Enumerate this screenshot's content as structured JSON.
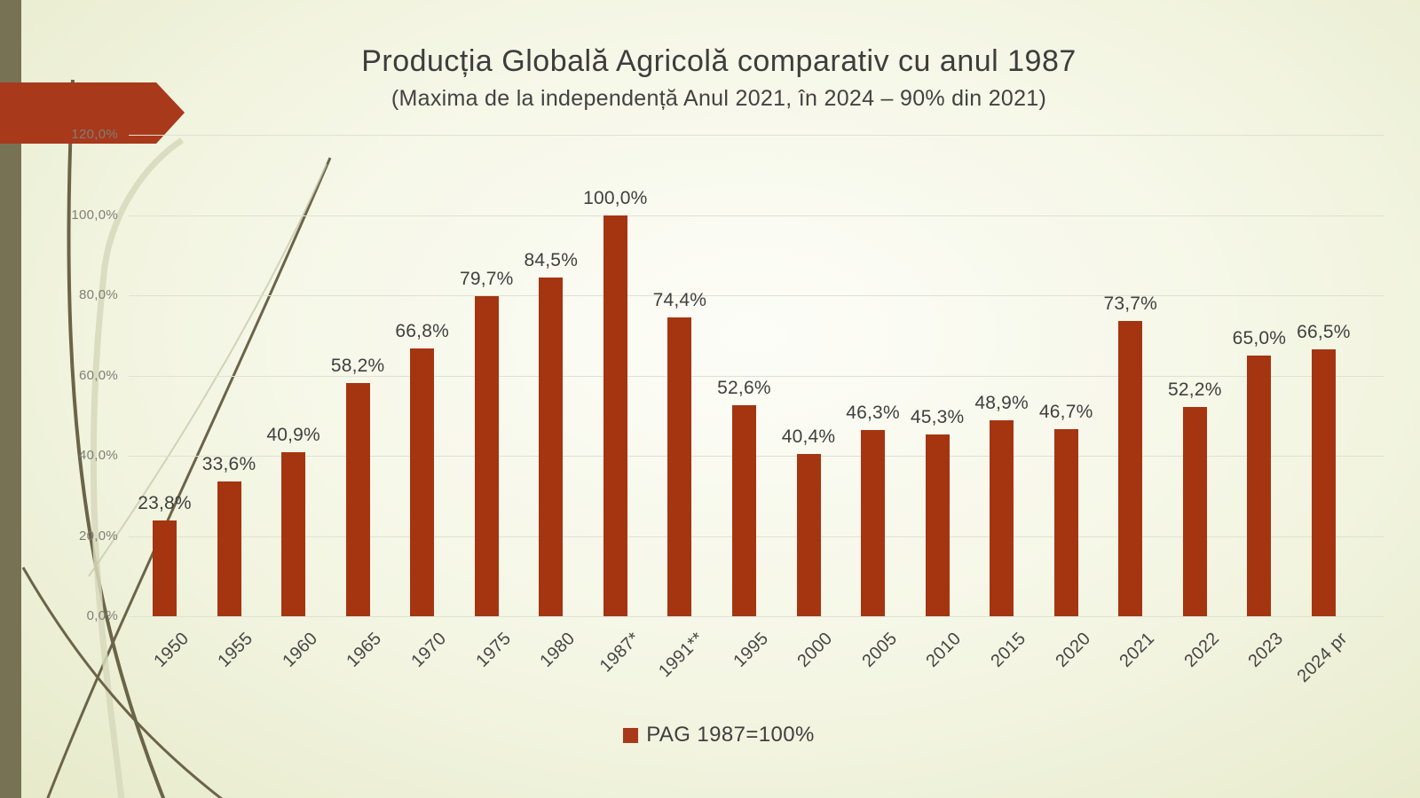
{
  "slide": {
    "title": "Producția Globală Agricolă comparativ cu anul 1987",
    "subtitle": "(Maxima de la independență Anul 2021, în 2024 – 90% din 2021)"
  },
  "legend": {
    "label": "PAG 1987=100%"
  },
  "colors": {
    "bar": "#a53511",
    "arrow_banner": "#a8391b",
    "left_edge_bar": "#787255",
    "gridline": "#dfe1d3",
    "text_dark": "#3f3f3f",
    "axis_text": "#7f7f76",
    "background_edge": "#e7ebcb",
    "background_center": "#fdfdf8"
  },
  "chart_data": {
    "type": "bar",
    "title": "Producția Globală Agricolă comparativ cu anul 1987",
    "subtitle": "(Maxima de la independență Anul 2021, în 2024 – 90% din 2021)",
    "categories": [
      "1950",
      "1955",
      "1960",
      "1965",
      "1970",
      "1975",
      "1980",
      "1987*",
      "1991**",
      "1995",
      "2000",
      "2005",
      "2010",
      "2015",
      "2020",
      "2021",
      "2022",
      "2023",
      "2024 pr"
    ],
    "values": [
      23.8,
      33.6,
      40.9,
      58.2,
      66.8,
      79.7,
      84.5,
      100.0,
      74.4,
      52.6,
      40.4,
      46.3,
      45.3,
      48.9,
      46.7,
      73.7,
      52.2,
      65.0,
      66.5
    ],
    "value_labels": [
      "23,8%",
      "33,6%",
      "40,9%",
      "58,2%",
      "66,8%",
      "79,7%",
      "84,5%",
      "100,0%",
      "74,4%",
      "52,6%",
      "40,4%",
      "46,3%",
      "45,3%",
      "48,9%",
      "46,7%",
      "73,7%",
      "52,2%",
      "65,0%",
      "66,5%"
    ],
    "y_ticks": [
      "0,0%",
      "20,0%",
      "40,0%",
      "60,0%",
      "80,0%",
      "100,0%",
      "120,0%"
    ],
    "ylim": [
      0,
      120
    ],
    "grid": true,
    "legend": [
      "PAG 1987=100%"
    ],
    "legend_position": "bottom",
    "xlabel": "",
    "ylabel": ""
  }
}
